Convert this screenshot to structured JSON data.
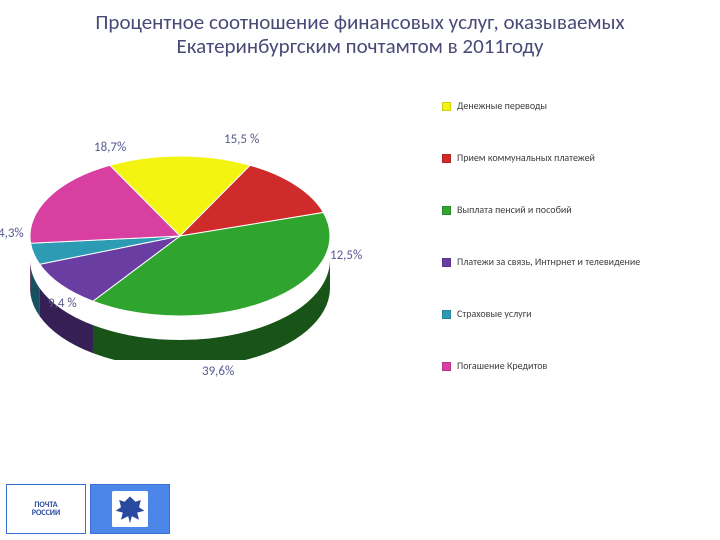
{
  "title": "Процентное соотношение финансовых услуг, оказываемых Екатеринбургским почтамтом в 2011году",
  "chart": {
    "type": "pie",
    "background_color": "#ffffff",
    "title_fontsize": 21,
    "title_color": "#4a4a78",
    "label_fontsize": 13,
    "label_color": "#5a5a90",
    "legend_fontsize": 10,
    "slices": [
      {
        "label": "Денежные переводы",
        "percent": 15.5,
        "display": "15,5 %",
        "color": "#f4f413",
        "side_color": "#9c9c0c"
      },
      {
        "label": "Прием коммунальных платежей",
        "percent": 12.5,
        "display": "12,5%",
        "color": "#cf2b2b",
        "side_color": "#5d1414"
      },
      {
        "label": "Выплата пенсий и пособий",
        "percent": 39.6,
        "display": "39,6%",
        "color": "#2fa42f",
        "side_color": "#185418"
      },
      {
        "label": "Платежи за связь, Интнрнет и телевидение",
        "percent": 9.4,
        "display": "9,4 %",
        "color": "#6a3da3",
        "side_color": "#361f54"
      },
      {
        "label": "Страховые услуги",
        "percent": 4.3,
        "display": "4,3%",
        "color": "#2e9bb5",
        "side_color": "#175060"
      },
      {
        "label": "Погашение Кредитов",
        "percent": 18.7,
        "display": "18,7%",
        "color": "#d83fa0",
        "side_color": "#701f52"
      }
    ]
  },
  "logos": {
    "pochta": "ПОЧТА\nРОССИИ",
    "emblem": "emblem"
  }
}
